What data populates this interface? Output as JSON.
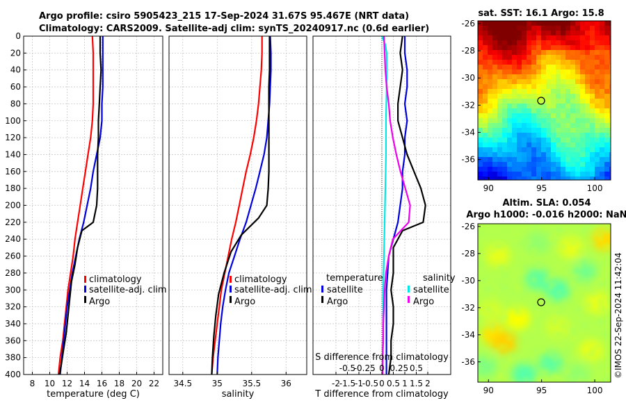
{
  "header": {
    "line1": "Argo profile: csiro 5905423_215 17-Sep-2024 31.67S 95.467E (NRT data)",
    "line2": "Climatology: CARS2009. Satellite-adj clim: synTS_20240917.nc (0.6d earlier)"
  },
  "colors": {
    "red": "#ff0000",
    "blue": "#0000dd",
    "black": "#000000",
    "cyan": "#00e5e5",
    "magenta": "#ee00ee"
  },
  "chart_data": [
    {
      "type": "line",
      "id": "temp",
      "xlabel": "temperature (deg C)",
      "ylabel": "",
      "xlim": [
        7,
        23
      ],
      "ylim": [
        400,
        0
      ],
      "xticks": [
        8,
        10,
        12,
        14,
        16,
        18,
        20,
        22
      ],
      "yticks": [
        0,
        20,
        40,
        60,
        80,
        100,
        120,
        140,
        160,
        180,
        200,
        220,
        240,
        260,
        280,
        300,
        320,
        340,
        360,
        380,
        400
      ],
      "legend": [
        "climatology",
        "satellite-adj. clim",
        "Argo"
      ],
      "series": [
        {
          "name": "climatology",
          "color": "red",
          "points": [
            [
              14.9,
              0
            ],
            [
              15.0,
              20
            ],
            [
              15.0,
              40
            ],
            [
              15.0,
              60
            ],
            [
              15.0,
              80
            ],
            [
              14.9,
              100
            ],
            [
              14.7,
              120
            ],
            [
              14.4,
              140
            ],
            [
              14.1,
              160
            ],
            [
              13.8,
              180
            ],
            [
              13.5,
              200
            ],
            [
              13.2,
              220
            ],
            [
              12.9,
              240
            ],
            [
              12.7,
              260
            ],
            [
              12.4,
              280
            ],
            [
              12.1,
              300
            ],
            [
              11.9,
              320
            ],
            [
              11.7,
              340
            ],
            [
              11.5,
              360
            ],
            [
              11.2,
              380
            ],
            [
              11.0,
              400
            ]
          ]
        },
        {
          "name": "satellite-adj. clim",
          "color": "blue",
          "points": [
            [
              16.1,
              0
            ],
            [
              16.1,
              20
            ],
            [
              16.1,
              40
            ],
            [
              16.1,
              60
            ],
            [
              16.0,
              80
            ],
            [
              16.0,
              100
            ],
            [
              15.8,
              120
            ],
            [
              15.4,
              140
            ],
            [
              15.0,
              160
            ],
            [
              14.7,
              180
            ],
            [
              14.3,
              200
            ],
            [
              13.9,
              220
            ],
            [
              13.4,
              240
            ],
            [
              13.0,
              260
            ],
            [
              12.6,
              280
            ],
            [
              12.3,
              300
            ],
            [
              12.0,
              320
            ],
            [
              11.8,
              340
            ],
            [
              11.6,
              360
            ],
            [
              11.4,
              380
            ],
            [
              11.2,
              400
            ]
          ]
        },
        {
          "name": "Argo",
          "color": "black",
          "points": [
            [
              15.8,
              0
            ],
            [
              15.8,
              20
            ],
            [
              15.9,
              40
            ],
            [
              15.8,
              60
            ],
            [
              15.7,
              80
            ],
            [
              15.6,
              100
            ],
            [
              15.6,
              120
            ],
            [
              15.5,
              140
            ],
            [
              15.5,
              160
            ],
            [
              15.5,
              180
            ],
            [
              15.4,
              200
            ],
            [
              15.0,
              220
            ],
            [
              13.7,
              230
            ],
            [
              13.2,
              250
            ],
            [
              12.9,
              270
            ],
            [
              12.5,
              290
            ],
            [
              12.3,
              310
            ],
            [
              12.1,
              330
            ],
            [
              11.9,
              350
            ],
            [
              11.6,
              370
            ],
            [
              11.3,
              390
            ],
            [
              11.1,
              400
            ]
          ]
        }
      ]
    },
    {
      "type": "line",
      "id": "sal",
      "xlabel": "salinity",
      "ylabel": "",
      "xlim": [
        34.3,
        36.3
      ],
      "ylim": [
        400,
        0
      ],
      "xticks": [
        34.5,
        35,
        35.5,
        36
      ],
      "xtick_labels": [
        "34.5",
        "35",
        "35.5",
        "36"
      ],
      "legend": [
        "climatology",
        "satellite-adj. clim",
        "Argo"
      ],
      "series": [
        {
          "name": "climatology",
          "color": "red",
          "points": [
            [
              35.65,
              0
            ],
            [
              35.65,
              20
            ],
            [
              35.64,
              40
            ],
            [
              35.62,
              60
            ],
            [
              35.6,
              80
            ],
            [
              35.57,
              100
            ],
            [
              35.53,
              120
            ],
            [
              35.48,
              140
            ],
            [
              35.42,
              160
            ],
            [
              35.37,
              180
            ],
            [
              35.32,
              200
            ],
            [
              35.27,
              220
            ],
            [
              35.21,
              240
            ],
            [
              35.16,
              260
            ],
            [
              35.11,
              280
            ],
            [
              35.06,
              300
            ],
            [
              35.03,
              320
            ],
            [
              35.0,
              340
            ],
            [
              34.97,
              360
            ],
            [
              34.94,
              380
            ],
            [
              34.92,
              400
            ]
          ]
        },
        {
          "name": "satellite-adj. clim",
          "color": "blue",
          "points": [
            [
              35.77,
              0
            ],
            [
              35.78,
              20
            ],
            [
              35.78,
              40
            ],
            [
              35.77,
              60
            ],
            [
              35.76,
              80
            ],
            [
              35.74,
              100
            ],
            [
              35.72,
              120
            ],
            [
              35.68,
              140
            ],
            [
              35.62,
              160
            ],
            [
              35.56,
              180
            ],
            [
              35.49,
              200
            ],
            [
              35.42,
              220
            ],
            [
              35.33,
              240
            ],
            [
              35.25,
              260
            ],
            [
              35.17,
              280
            ],
            [
              35.12,
              300
            ],
            [
              35.08,
              320
            ],
            [
              35.05,
              340
            ],
            [
              35.03,
              360
            ],
            [
              35.01,
              380
            ],
            [
              35.0,
              400
            ]
          ]
        },
        {
          "name": "Argo",
          "color": "black",
          "points": [
            [
              35.76,
              0
            ],
            [
              35.76,
              20
            ],
            [
              35.76,
              40
            ],
            [
              35.75,
              60
            ],
            [
              35.75,
              80
            ],
            [
              35.75,
              100
            ],
            [
              35.75,
              120
            ],
            [
              35.75,
              140
            ],
            [
              35.75,
              160
            ],
            [
              35.74,
              180
            ],
            [
              35.72,
              200
            ],
            [
              35.6,
              215
            ],
            [
              35.35,
              235
            ],
            [
              35.2,
              255
            ],
            [
              35.1,
              280
            ],
            [
              35.02,
              305
            ],
            [
              34.98,
              330
            ],
            [
              34.95,
              355
            ],
            [
              34.93,
              380
            ],
            [
              34.92,
              400
            ]
          ]
        }
      ]
    },
    {
      "type": "line",
      "id": "diff",
      "xlabel": "T difference from climatology",
      "top_xlabel": "S difference from climatology",
      "xlim": [
        -3,
        3
      ],
      "ylim": [
        400,
        0
      ],
      "xticks": [
        -2,
        -1.5,
        -1,
        -0.5,
        0,
        0.5,
        1,
        1.5,
        2
      ],
      "xtick_labels": [
        "-2",
        "-1.5",
        "-1",
        "-0.5",
        "0",
        "0.5",
        "1",
        "1.5",
        "2"
      ],
      "top_ticks": [
        -0.5,
        -0.25,
        0,
        0.25,
        0.5
      ],
      "top_tick_labels": [
        "-0.5",
        "-0.25",
        "0",
        "0.25",
        "0.5"
      ],
      "legend_left_title": "temperature",
      "legend_left": [
        "satellite",
        "Argo"
      ],
      "legend_right_title": "salinity",
      "legend_right": [
        "satellite",
        "Argo"
      ],
      "series": [
        {
          "name": "temperature satellite",
          "color": "blue",
          "points": [
            [
              1.0,
              0
            ],
            [
              1.0,
              20
            ],
            [
              1.1,
              40
            ],
            [
              1.1,
              60
            ],
            [
              1.0,
              80
            ],
            [
              1.1,
              100
            ],
            [
              1.0,
              120
            ],
            [
              1.0,
              140
            ],
            [
              0.9,
              160
            ],
            [
              0.9,
              180
            ],
            [
              0.8,
              200
            ],
            [
              0.7,
              220
            ],
            [
              0.5,
              240
            ],
            [
              0.3,
              260
            ],
            [
              0.25,
              280
            ],
            [
              0.2,
              300
            ],
            [
              0.2,
              320
            ],
            [
              0.2,
              340
            ],
            [
              0.2,
              360
            ],
            [
              0.2,
              380
            ],
            [
              0.2,
              400
            ]
          ]
        },
        {
          "name": "temperature Argo",
          "color": "black",
          "points": [
            [
              0.9,
              0
            ],
            [
              0.8,
              20
            ],
            [
              0.9,
              40
            ],
            [
              0.8,
              60
            ],
            [
              0.7,
              80
            ],
            [
              0.7,
              100
            ],
            [
              0.9,
              120
            ],
            [
              1.1,
              140
            ],
            [
              1.4,
              160
            ],
            [
              1.7,
              180
            ],
            [
              1.9,
              200
            ],
            [
              1.8,
              220
            ],
            [
              0.9,
              230
            ],
            [
              0.5,
              250
            ],
            [
              0.5,
              280
            ],
            [
              0.4,
              300
            ],
            [
              0.5,
              320
            ],
            [
              0.5,
              340
            ],
            [
              0.4,
              360
            ],
            [
              0.4,
              380
            ],
            [
              0.3,
              400
            ]
          ]
        },
        {
          "name": "salinity satellite",
          "color": "cyan",
          "points": [
            [
              0.0,
              0
            ],
            [
              0.05,
              10
            ],
            [
              0.07,
              20
            ],
            [
              0.07,
              60
            ],
            [
              0.06,
              100
            ],
            [
              0.06,
              140
            ],
            [
              0.05,
              180
            ],
            [
              0.04,
              220
            ],
            [
              0.03,
              260
            ],
            [
              0.02,
              300
            ],
            [
              0.02,
              340
            ],
            [
              0.01,
              400
            ]
          ]
        },
        {
          "name": "salinity Argo",
          "color": "magenta",
          "points": [
            [
              0.03,
              0
            ],
            [
              0.04,
              20
            ],
            [
              0.05,
              40
            ],
            [
              0.07,
              60
            ],
            [
              0.1,
              80
            ],
            [
              0.12,
              100
            ],
            [
              0.16,
              120
            ],
            [
              0.21,
              140
            ],
            [
              0.27,
              160
            ],
            [
              0.34,
              180
            ],
            [
              0.41,
              200
            ],
            [
              0.39,
              220
            ],
            [
              0.16,
              240
            ],
            [
              0.1,
              260
            ],
            [
              0.06,
              280
            ],
            [
              0.04,
              300
            ],
            [
              0.03,
              320
            ],
            [
              0.02,
              340
            ],
            [
              0.02,
              360
            ],
            [
              0.01,
              380
            ],
            [
              0.01,
              400
            ]
          ]
        }
      ]
    },
    {
      "type": "heatmap",
      "id": "sst",
      "title": "sat. SST: 16.1 Argo: 15.8",
      "xticks": [
        90,
        95,
        100
      ],
      "yticks": [
        -26,
        -28,
        -30,
        -32,
        -34,
        -36
      ],
      "xlim": [
        89,
        101.5
      ],
      "ylim": [
        -37.5,
        -25.8
      ],
      "marker": [
        95.47,
        -31.67
      ]
    },
    {
      "type": "heatmap",
      "id": "sla",
      "title1": "Altim. SLA: 0.054",
      "title2": "Argo h1000: -0.016 h2000: NaN",
      "xticks": [
        90,
        95,
        100
      ],
      "yticks": [
        -26,
        -28,
        -30,
        -32,
        -34,
        -36
      ],
      "xlim": [
        89,
        101.5
      ],
      "ylim": [
        -37.5,
        -25.8
      ],
      "marker": [
        95.47,
        -31.67
      ]
    }
  ],
  "footer": {
    "stamp": "©IMOS 22-Sep-2024 11:42:04"
  }
}
